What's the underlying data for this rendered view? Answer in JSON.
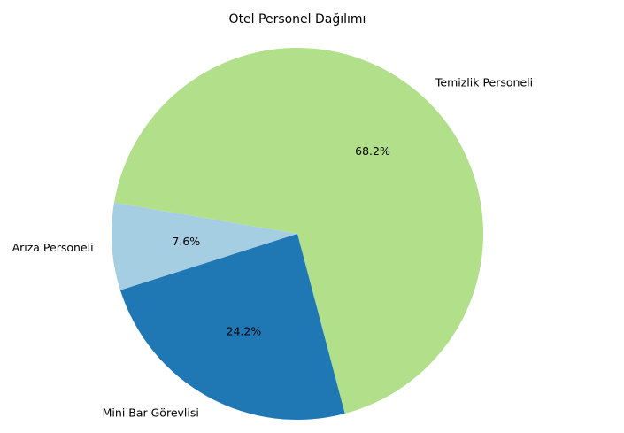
{
  "chart_data": {
    "type": "pie",
    "title": "Otel Personel Dağılımı",
    "slices": [
      {
        "label": "Temizlik Personeli",
        "value": 68.2,
        "pct_label": "68.2%",
        "color": "#b2df8a"
      },
      {
        "label": "Arıza Personeli",
        "value": 7.6,
        "pct_label": "7.6%",
        "color": "#a6cee3"
      },
      {
        "label": "Mini Bar Görevlisi",
        "value": 24.2,
        "pct_label": "24.2%",
        "color": "#1f78b4"
      }
    ],
    "legend": "none"
  }
}
